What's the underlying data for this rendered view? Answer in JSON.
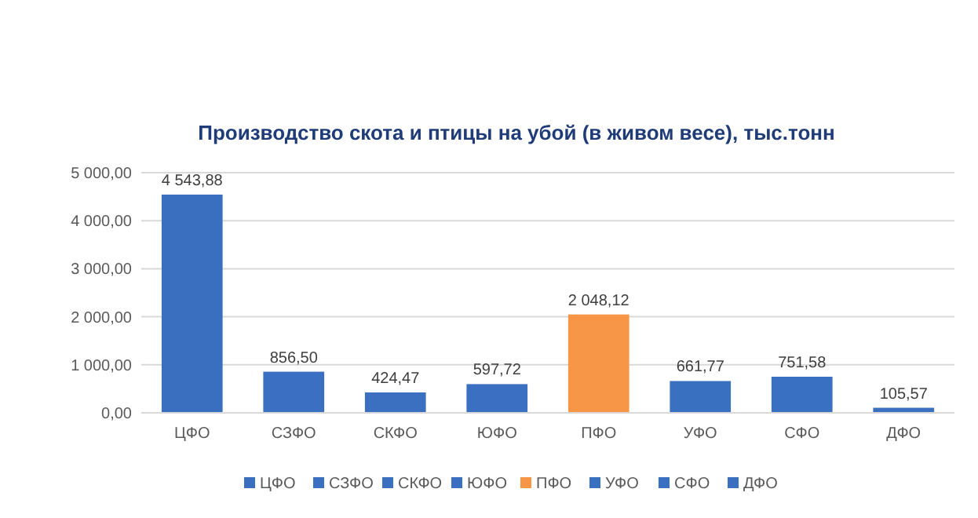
{
  "chart_data": {
    "type": "bar",
    "title": "Производство скота и птицы на убой (в живом весе), тыс.тонн",
    "categories": [
      "ЦФО",
      "СЗФО",
      "СКФО",
      "ЮФО",
      "ПФО",
      "УФО",
      "СФО",
      "ДФО"
    ],
    "stacked": true,
    "series": [
      {
        "name": "ЦФО",
        "color": "#3a6fc0",
        "values": [
          4543.88,
          null,
          null,
          null,
          null,
          null,
          null,
          null
        ],
        "value_labels": [
          "4 543,88",
          null,
          null,
          null,
          null,
          null,
          null,
          null
        ]
      },
      {
        "name": "СЗФО",
        "color": "#3a6fc1",
        "values": [
          null,
          856.5,
          null,
          null,
          null,
          null,
          null,
          null
        ],
        "value_labels": [
          null,
          "856,50",
          null,
          null,
          null,
          null,
          null,
          null
        ]
      },
      {
        "name": "СКФО",
        "color": "#3b6fc0",
        "values": [
          null,
          null,
          424.47,
          null,
          null,
          null,
          null,
          null
        ],
        "value_labels": [
          null,
          null,
          "424,47",
          null,
          null,
          null,
          null,
          null
        ]
      },
      {
        "name": "ЮФО",
        "color": "#3b6fc1",
        "values": [
          null,
          null,
          null,
          597.72,
          null,
          null,
          null,
          null
        ],
        "value_labels": [
          null,
          null,
          null,
          "597,72",
          null,
          null,
          null,
          null
        ]
      },
      {
        "name": "ПФО",
        "color": "#f79646",
        "values": [
          null,
          null,
          null,
          null,
          2048.12,
          null,
          null,
          null
        ],
        "value_labels": [
          null,
          null,
          null,
          null,
          "2 048,12",
          null,
          null,
          null
        ]
      },
      {
        "name": "УФО",
        "color": "#3a70c0",
        "values": [
          null,
          null,
          null,
          null,
          null,
          661.77,
          null,
          null
        ],
        "value_labels": [
          null,
          null,
          null,
          null,
          null,
          "661,77",
          null,
          null
        ]
      },
      {
        "name": "СФО",
        "color": "#3a70c1",
        "values": [
          null,
          null,
          null,
          null,
          null,
          null,
          751.58,
          null
        ],
        "value_labels": [
          null,
          null,
          null,
          null,
          null,
          null,
          "751,58",
          null
        ]
      },
      {
        "name": "ДФО",
        "color": "#3b70c0",
        "values": [
          null,
          null,
          null,
          null,
          null,
          null,
          null,
          105.57
        ],
        "value_labels": [
          null,
          null,
          null,
          null,
          null,
          null,
          null,
          "105,57"
        ]
      }
    ],
    "ylim": [
      0,
      5000
    ],
    "yticks": [
      {
        "value": 0,
        "label": "0,00"
      },
      {
        "value": 1000,
        "label": "1 000,00"
      },
      {
        "value": 2000,
        "label": "2 000,00"
      },
      {
        "value": 3000,
        "label": "3 000,00"
      },
      {
        "value": 4000,
        "label": "4 000,00"
      },
      {
        "value": 5000,
        "label": "5 000,00"
      }
    ],
    "grid": "y",
    "legend": "bottom"
  }
}
